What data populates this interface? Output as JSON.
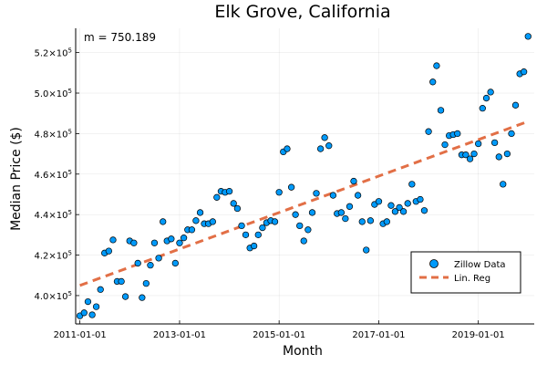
{
  "chart_data": {
    "type": "scatter",
    "title": "Elk Grove, California",
    "xlabel": "Month",
    "ylabel": "Median Price ($)",
    "annotation": "m = 750.189",
    "xlim": [
      "2010-12-01",
      "2020-02-15"
    ],
    "ylim": [
      386000,
      532000
    ],
    "x_ticks": [
      "2011-01-01",
      "2013-01-01",
      "2015-01-01",
      "2017-01-01",
      "2019-01-01"
    ],
    "y_ticks": [
      {
        "value": 400000,
        "mantissa": "4.0",
        "exponent": "5"
      },
      {
        "value": 420000,
        "mantissa": "4.2",
        "exponent": "5"
      },
      {
        "value": 440000,
        "mantissa": "4.4",
        "exponent": "5"
      },
      {
        "value": 460000,
        "mantissa": "4.6",
        "exponent": "5"
      },
      {
        "value": 480000,
        "mantissa": "4.8",
        "exponent": "5"
      },
      {
        "value": 500000,
        "mantissa": "5.0",
        "exponent": "5"
      },
      {
        "value": 520000,
        "mantissa": "5.2",
        "exponent": "5"
      }
    ],
    "tick_base": "×10",
    "grid": true,
    "legend_position": "bottom-right",
    "series": [
      {
        "name": "Zillow Data",
        "kind": "scatter",
        "color": "#009AFA",
        "points": [
          [
            "2011-01-01",
            390000
          ],
          [
            "2011-02-01",
            391500
          ],
          [
            "2011-03-01",
            397000
          ],
          [
            "2011-04-01",
            390500
          ],
          [
            "2011-05-01",
            394500
          ],
          [
            "2011-06-01",
            403000
          ],
          [
            "2011-07-01",
            421000
          ],
          [
            "2011-08-01",
            422000
          ],
          [
            "2011-09-01",
            427500
          ],
          [
            "2011-10-01",
            407000
          ],
          [
            "2011-11-01",
            407000
          ],
          [
            "2011-12-01",
            399500
          ],
          [
            "2012-01-01",
            427000
          ],
          [
            "2012-02-01",
            426000
          ],
          [
            "2012-03-01",
            416000
          ],
          [
            "2012-04-01",
            399000
          ],
          [
            "2012-05-01",
            406000
          ],
          [
            "2012-06-01",
            415000
          ],
          [
            "2012-07-01",
            426000
          ],
          [
            "2012-08-01",
            418500
          ],
          [
            "2012-09-01",
            436500
          ],
          [
            "2012-10-01",
            427000
          ],
          [
            "2012-11-01",
            428000
          ],
          [
            "2012-12-01",
            416000
          ],
          [
            "2013-01-01",
            426000
          ],
          [
            "2013-02-01",
            428500
          ],
          [
            "2013-03-01",
            432500
          ],
          [
            "2013-04-01",
            432500
          ],
          [
            "2013-05-01",
            437000
          ],
          [
            "2013-06-01",
            441000
          ],
          [
            "2013-07-01",
            435500
          ],
          [
            "2013-08-01",
            435500
          ],
          [
            "2013-09-01",
            436500
          ],
          [
            "2013-10-01",
            448500
          ],
          [
            "2013-11-01",
            451500
          ],
          [
            "2013-12-01",
            451000
          ],
          [
            "2014-01-01",
            451500
          ],
          [
            "2014-02-01",
            445500
          ],
          [
            "2014-03-01",
            443000
          ],
          [
            "2014-04-01",
            434500
          ],
          [
            "2014-05-01",
            430000
          ],
          [
            "2014-06-01",
            423500
          ],
          [
            "2014-07-01",
            424500
          ],
          [
            "2014-08-01",
            430000
          ],
          [
            "2014-09-01",
            433500
          ],
          [
            "2014-10-01",
            436000
          ],
          [
            "2014-11-01",
            437000
          ],
          [
            "2014-12-01",
            436500
          ],
          [
            "2015-01-01",
            451000
          ],
          [
            "2015-02-01",
            471000
          ],
          [
            "2015-03-01",
            472500
          ],
          [
            "2015-04-01",
            453500
          ],
          [
            "2015-05-01",
            440000
          ],
          [
            "2015-06-01",
            434500
          ],
          [
            "2015-07-01",
            427000
          ],
          [
            "2015-08-01",
            432500
          ],
          [
            "2015-09-01",
            441000
          ],
          [
            "2015-10-01",
            450500
          ],
          [
            "2015-11-01",
            472500
          ],
          [
            "2015-12-01",
            478000
          ],
          [
            "2016-01-01",
            474000
          ],
          [
            "2016-02-01",
            449500
          ],
          [
            "2016-03-01",
            440500
          ],
          [
            "2016-04-01",
            441000
          ],
          [
            "2016-05-01",
            438000
          ],
          [
            "2016-06-01",
            444000
          ],
          [
            "2016-07-01",
            456500
          ],
          [
            "2016-08-01",
            449500
          ],
          [
            "2016-09-01",
            436500
          ],
          [
            "2016-10-01",
            422500
          ],
          [
            "2016-11-01",
            437000
          ],
          [
            "2016-12-01",
            445000
          ],
          [
            "2017-01-01",
            446500
          ],
          [
            "2017-02-01",
            435500
          ],
          [
            "2017-03-01",
            436500
          ],
          [
            "2017-04-01",
            444500
          ],
          [
            "2017-05-01",
            441500
          ],
          [
            "2017-06-01",
            443500
          ],
          [
            "2017-07-01",
            441500
          ],
          [
            "2017-08-01",
            445500
          ],
          [
            "2017-09-01",
            455000
          ],
          [
            "2017-10-01",
            446500
          ],
          [
            "2017-11-01",
            447500
          ],
          [
            "2017-12-01",
            442000
          ],
          [
            "2018-01-01",
            481000
          ],
          [
            "2018-02-01",
            505500
          ],
          [
            "2018-03-01",
            513500
          ],
          [
            "2018-04-01",
            491500
          ],
          [
            "2018-05-01",
            474500
          ],
          [
            "2018-06-01",
            479000
          ],
          [
            "2018-07-01",
            479500
          ],
          [
            "2018-08-01",
            480000
          ],
          [
            "2018-09-01",
            469500
          ],
          [
            "2018-10-01",
            469500
          ],
          [
            "2018-11-01",
            467500
          ],
          [
            "2018-12-01",
            470000
          ],
          [
            "2019-01-01",
            475000
          ],
          [
            "2019-02-01",
            492500
          ],
          [
            "2019-03-01",
            497500
          ],
          [
            "2019-04-01",
            500500
          ],
          [
            "2019-05-01",
            475500
          ],
          [
            "2019-06-01",
            468500
          ],
          [
            "2019-07-01",
            455000
          ],
          [
            "2019-08-01",
            470000
          ],
          [
            "2019-09-01",
            480000
          ],
          [
            "2019-10-01",
            494000
          ],
          [
            "2019-11-01",
            509500
          ],
          [
            "2019-12-01",
            510500
          ],
          [
            "2020-01-01",
            528000
          ]
        ]
      },
      {
        "name": "Lin. Reg",
        "kind": "line",
        "style": "dashed",
        "color": "#E26F46",
        "points": [
          [
            "2011-01-01",
            405000
          ],
          [
            "2020-01-01",
            486000
          ]
        ]
      }
    ]
  }
}
